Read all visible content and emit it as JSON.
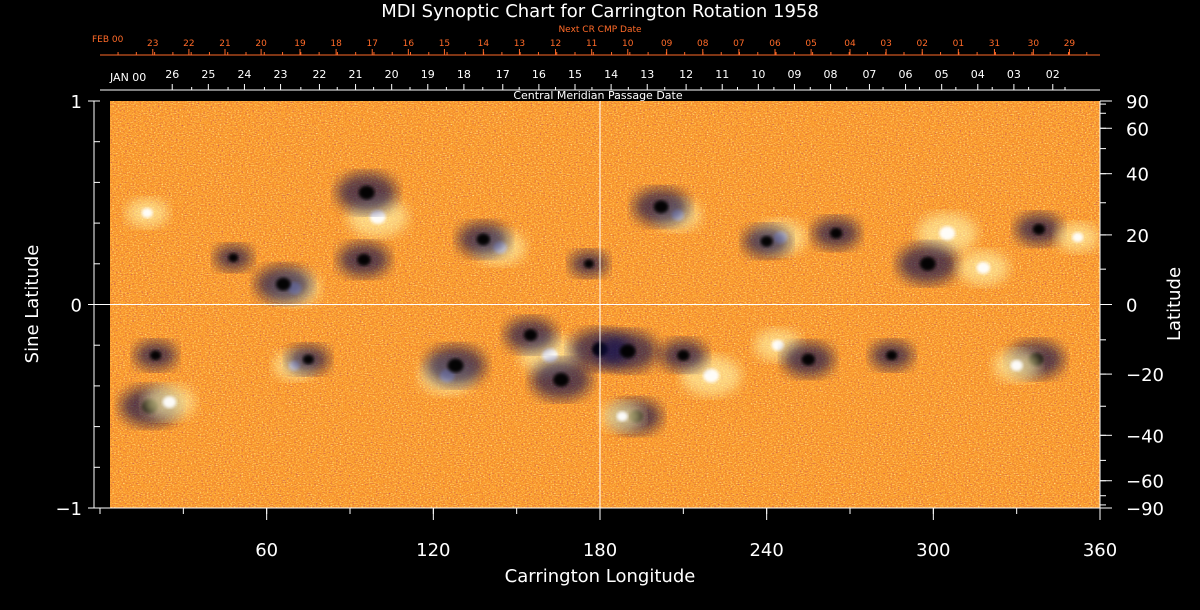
{
  "chart_data": {
    "type": "heatmap",
    "title": "MDI Synoptic Chart for Carrington Rotation 1958",
    "xlabel": "Carrington Longitude",
    "ylabel_left": "Sine Latitude",
    "ylabel_right": "Latitude",
    "xlim": [
      0,
      360
    ],
    "ylim": [
      -1,
      1
    ],
    "x_ticks": [
      60,
      120,
      180,
      240,
      300,
      360
    ],
    "x_tick_labels": [
      "60",
      "120",
      "180",
      "240",
      "300",
      "360"
    ],
    "y_left_ticks": [
      1,
      0,
      -1
    ],
    "y_left_tick_labels": [
      "1",
      "0",
      "−1"
    ],
    "y_right_ticks": [
      90,
      60,
      40,
      20,
      0,
      -20,
      -40,
      -60,
      -90
    ],
    "y_right_tick_labels": [
      "90",
      "60",
      "40",
      "20",
      "0",
      "−20",
      "−40",
      "−60",
      "−90"
    ],
    "top_axis_label": "Central Meridian Passage Date",
    "top_axis_start_label": "JAN 00",
    "top_axis_dates": [
      "26",
      "25",
      "24",
      "23",
      "22",
      "21",
      "20",
      "19",
      "18",
      "17",
      "16",
      "15",
      "14",
      "13",
      "12",
      "11",
      "10",
      "09",
      "08",
      "07",
      "06",
      "05",
      "04",
      "03",
      "02"
    ],
    "top_axis_date_longitudes": [
      26,
      39,
      52,
      65,
      79,
      92,
      105,
      118,
      131,
      145,
      158,
      171,
      184,
      197,
      211,
      224,
      237,
      250,
      263,
      277,
      290,
      303,
      316,
      329,
      343
    ],
    "next_cr_label": "Next CR CMP Date",
    "next_cr_start_label": "FEB 00",
    "next_cr_dates": [
      "23",
      "22",
      "21",
      "20",
      "19",
      "18",
      "17",
      "16",
      "15",
      "14",
      "13",
      "12",
      "11",
      "10",
      "09",
      "08",
      "07",
      "06",
      "05",
      "04",
      "03",
      "02",
      "01",
      "31",
      "30",
      "29"
    ],
    "next_cr_date_longitudes": [
      19,
      32,
      45,
      58,
      72,
      85,
      98,
      111,
      124,
      138,
      151,
      164,
      177,
      190,
      204,
      217,
      230,
      243,
      256,
      270,
      283,
      296,
      309,
      322,
      336,
      349
    ],
    "colormap": {
      "low": "#0a0a50",
      "mid": "#e8410a",
      "high": "#fff3a8",
      "line": "#ffffff",
      "accent": "#ff6a28"
    },
    "reference_lines": {
      "longitude": 180,
      "sine_latitude": 0
    },
    "active_regions": [
      {
        "lon": 100,
        "sinlat": 0.43,
        "polarity": "positive",
        "strength": 1.0
      },
      {
        "lon": 96,
        "sinlat": 0.55,
        "polarity": "negative",
        "strength": 1.0
      },
      {
        "lon": 95,
        "sinlat": 0.22,
        "polarity": "negative",
        "strength": 0.8
      },
      {
        "lon": 70,
        "sinlat": 0.08,
        "polarity": "positive",
        "strength": 0.8
      },
      {
        "lon": 66,
        "sinlat": 0.1,
        "polarity": "negative",
        "strength": 0.9
      },
      {
        "lon": 48,
        "sinlat": 0.23,
        "polarity": "negative",
        "strength": 0.5
      },
      {
        "lon": 144,
        "sinlat": 0.28,
        "polarity": "positive",
        "strength": 0.8
      },
      {
        "lon": 138,
        "sinlat": 0.32,
        "polarity": "negative",
        "strength": 0.8
      },
      {
        "lon": 176,
        "sinlat": 0.2,
        "polarity": "negative",
        "strength": 0.5
      },
      {
        "lon": 208,
        "sinlat": 0.44,
        "polarity": "positive",
        "strength": 0.7
      },
      {
        "lon": 202,
        "sinlat": 0.48,
        "polarity": "negative",
        "strength": 0.9
      },
      {
        "lon": 245,
        "sinlat": 0.33,
        "polarity": "positive",
        "strength": 0.8
      },
      {
        "lon": 240,
        "sinlat": 0.31,
        "polarity": "negative",
        "strength": 0.7
      },
      {
        "lon": 265,
        "sinlat": 0.35,
        "polarity": "negative",
        "strength": 0.7
      },
      {
        "lon": 305,
        "sinlat": 0.35,
        "polarity": "positive",
        "strength": 1.0
      },
      {
        "lon": 298,
        "sinlat": 0.2,
        "polarity": "negative",
        "strength": 1.0
      },
      {
        "lon": 318,
        "sinlat": 0.18,
        "polarity": "positive",
        "strength": 0.8
      },
      {
        "lon": 338,
        "sinlat": 0.37,
        "polarity": "negative",
        "strength": 0.7
      },
      {
        "lon": 352,
        "sinlat": 0.33,
        "polarity": "positive",
        "strength": 0.6
      },
      {
        "lon": 17,
        "sinlat": 0.45,
        "polarity": "positive",
        "strength": 0.6
      },
      {
        "lon": 20,
        "sinlat": -0.25,
        "polarity": "negative",
        "strength": 0.6
      },
      {
        "lon": 18,
        "sinlat": -0.5,
        "polarity": "negative",
        "strength": 1.0
      },
      {
        "lon": 25,
        "sinlat": -0.48,
        "polarity": "positive",
        "strength": 0.8
      },
      {
        "lon": 70,
        "sinlat": -0.3,
        "polarity": "positive",
        "strength": 0.6
      },
      {
        "lon": 75,
        "sinlat": -0.27,
        "polarity": "negative",
        "strength": 0.6
      },
      {
        "lon": 125,
        "sinlat": -0.35,
        "polarity": "positive",
        "strength": 0.9
      },
      {
        "lon": 128,
        "sinlat": -0.3,
        "polarity": "negative",
        "strength": 1.0
      },
      {
        "lon": 162,
        "sinlat": -0.25,
        "polarity": "positive",
        "strength": 1.0
      },
      {
        "lon": 166,
        "sinlat": -0.37,
        "polarity": "negative",
        "strength": 1.0
      },
      {
        "lon": 155,
        "sinlat": -0.15,
        "polarity": "negative",
        "strength": 0.8
      },
      {
        "lon": 180,
        "sinlat": -0.22,
        "polarity": "negative",
        "strength": 1.0
      },
      {
        "lon": 190,
        "sinlat": -0.23,
        "polarity": "negative",
        "strength": 1.0
      },
      {
        "lon": 220,
        "sinlat": -0.35,
        "polarity": "positive",
        "strength": 1.0
      },
      {
        "lon": 210,
        "sinlat": -0.25,
        "polarity": "negative",
        "strength": 0.7
      },
      {
        "lon": 193,
        "sinlat": -0.55,
        "polarity": "negative",
        "strength": 0.8
      },
      {
        "lon": 188,
        "sinlat": -0.55,
        "polarity": "positive",
        "strength": 0.6
      },
      {
        "lon": 244,
        "sinlat": -0.2,
        "polarity": "positive",
        "strength": 0.7
      },
      {
        "lon": 255,
        "sinlat": -0.27,
        "polarity": "negative",
        "strength": 0.8
      },
      {
        "lon": 285,
        "sinlat": -0.25,
        "polarity": "negative",
        "strength": 0.6
      },
      {
        "lon": 337,
        "sinlat": -0.27,
        "polarity": "negative",
        "strength": 0.9
      },
      {
        "lon": 330,
        "sinlat": -0.3,
        "polarity": "positive",
        "strength": 0.7
      }
    ]
  }
}
